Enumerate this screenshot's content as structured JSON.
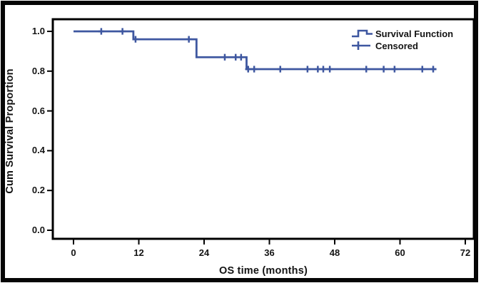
{
  "chart_data": {
    "type": "line",
    "subtype": "kaplan-meier-survival-step",
    "title": "",
    "xlabel": "OS time (months)",
    "ylabel": "Cum Survival Proportion",
    "xlim": [
      0,
      72
    ],
    "ylim": [
      0.0,
      1.0
    ],
    "grid": false,
    "legend_position": "top-right-inside",
    "x_tick_labels": [
      "0",
      "12",
      "24",
      "36",
      "48",
      "60",
      "72"
    ],
    "y_tick_labels": [
      "0.0",
      "0.2",
      "0.4",
      "0.6",
      "0.8",
      "1.0"
    ],
    "line_color": "#3e57a0",
    "frame_color": "#000000",
    "legend": [
      {
        "label": "Survival Function",
        "marker": "step-line"
      },
      {
        "label": "Censored",
        "marker": "plus"
      }
    ],
    "survival_steps": [
      {
        "t_start": 0,
        "t_end": 11.0,
        "survival": 1.0
      },
      {
        "t_start": 11.0,
        "t_end": 22.6,
        "survival": 0.96
      },
      {
        "t_start": 22.6,
        "t_end": 31.8,
        "survival": 0.87
      },
      {
        "t_start": 31.8,
        "t_end": 66.7,
        "survival": 0.81
      }
    ],
    "censored_points": [
      {
        "t": 5.1,
        "survival": 1.0
      },
      {
        "t": 9.0,
        "survival": 1.0
      },
      {
        "t": 11.4,
        "survival": 0.96
      },
      {
        "t": 21.2,
        "survival": 0.96
      },
      {
        "t": 27.8,
        "survival": 0.87
      },
      {
        "t": 29.8,
        "survival": 0.87
      },
      {
        "t": 30.8,
        "survival": 0.87
      },
      {
        "t": 32.1,
        "survival": 0.81
      },
      {
        "t": 33.2,
        "survival": 0.81
      },
      {
        "t": 38.0,
        "survival": 0.81
      },
      {
        "t": 43.0,
        "survival": 0.81
      },
      {
        "t": 44.9,
        "survival": 0.81
      },
      {
        "t": 45.9,
        "survival": 0.81
      },
      {
        "t": 47.1,
        "survival": 0.81
      },
      {
        "t": 53.8,
        "survival": 0.81
      },
      {
        "t": 57.0,
        "survival": 0.81
      },
      {
        "t": 59.0,
        "survival": 0.81
      },
      {
        "t": 64.1,
        "survival": 0.81
      },
      {
        "t": 66.1,
        "survival": 0.81
      }
    ]
  }
}
